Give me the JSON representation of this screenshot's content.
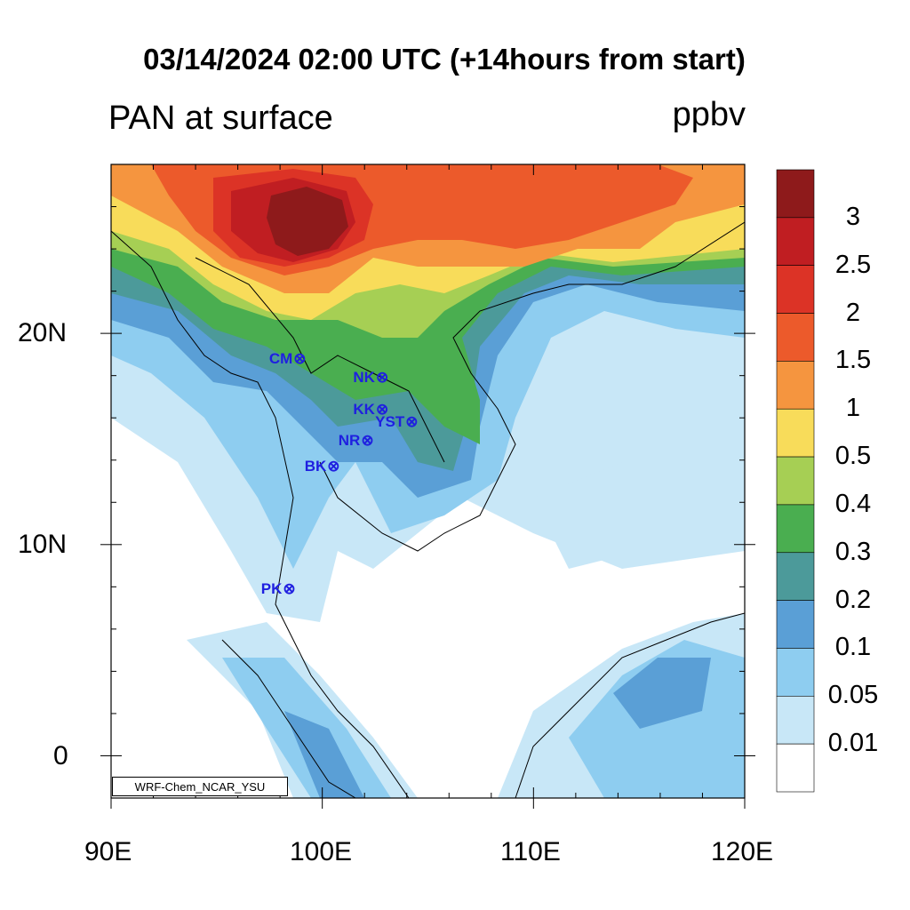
{
  "title": "03/14/2024 02:00 UTC (+14hours from start)",
  "subtitle_left": "PAN at surface",
  "subtitle_right": "ppbv",
  "credit": "WRF-Chem_NCAR_YSU",
  "map": {
    "lon_range": [
      90,
      120
    ],
    "lat_range": [
      -2,
      28
    ],
    "x_ticks": [
      "90E",
      "100E",
      "110E",
      "120E"
    ],
    "y_ticks": [
      "20N",
      "10N",
      "0"
    ]
  },
  "colorbar": {
    "labels": [
      "3",
      "2.5",
      "2",
      "1.5",
      "1",
      "0.5",
      "0.4",
      "0.3",
      "0.2",
      "0.1",
      "0.05",
      "0.01"
    ],
    "colors": [
      "#8e1a1b",
      "#c01e22",
      "#dc3326",
      "#ec5a2b",
      "#f5953f",
      "#f8dc5a",
      "#a6cf54",
      "#4aae50",
      "#4c9a9a",
      "#5a9fd6",
      "#8ecdf0",
      "#c8e7f7",
      "#ffffff"
    ]
  },
  "stations": [
    {
      "label": "CM",
      "lon": 98.9,
      "lat": 18.8
    },
    {
      "label": "NK",
      "lon": 102.8,
      "lat": 17.9
    },
    {
      "label": "KK",
      "lon": 102.8,
      "lat": 16.4
    },
    {
      "label": "YST",
      "lon": 104.2,
      "lat": 15.8
    },
    {
      "label": "NR",
      "lon": 102.1,
      "lat": 14.9
    },
    {
      "label": "BK",
      "lon": 100.5,
      "lat": 13.7
    },
    {
      "label": "PK",
      "lon": 98.4,
      "lat": 7.9
    }
  ],
  "station_marker": "⊗"
}
